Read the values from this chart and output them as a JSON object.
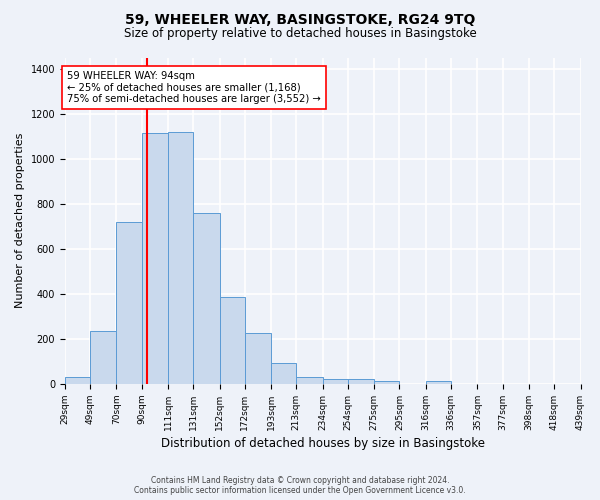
{
  "title": "59, WHEELER WAY, BASINGSTOKE, RG24 9TQ",
  "subtitle": "Size of property relative to detached houses in Basingstoke",
  "xlabel": "Distribution of detached houses by size in Basingstoke",
  "ylabel": "Number of detached properties",
  "bar_lefts": [
    29,
    49,
    70,
    90,
    111,
    131,
    152,
    172,
    193,
    213,
    234,
    254,
    275,
    295,
    316,
    336,
    357,
    377,
    398,
    418
  ],
  "bar_widths": [
    20,
    21,
    20,
    21,
    20,
    21,
    20,
    21,
    20,
    21,
    20,
    21,
    20,
    21,
    20,
    21,
    20,
    21,
    20,
    21
  ],
  "bar_heights": [
    30,
    237,
    718,
    1113,
    1120,
    760,
    385,
    228,
    93,
    30,
    22,
    22,
    15,
    0,
    12,
    0,
    0,
    0,
    0,
    0
  ],
  "bar_color": "#c9d9ed",
  "bar_edgecolor": "#5b9bd5",
  "vline_x": 94,
  "vline_color": "red",
  "annotation_text": "59 WHEELER WAY: 94sqm\n← 25% of detached houses are smaller (1,168)\n75% of semi-detached houses are larger (3,552) →",
  "annotation_box_edgecolor": "red",
  "annotation_box_facecolor": "white",
  "ylim": [
    0,
    1450
  ],
  "yticks": [
    0,
    200,
    400,
    600,
    800,
    1000,
    1200,
    1400
  ],
  "xlim": [
    29,
    439
  ],
  "tick_positions": [
    29,
    49,
    70,
    90,
    111,
    131,
    152,
    172,
    193,
    213,
    234,
    254,
    275,
    295,
    316,
    336,
    357,
    377,
    398,
    418,
    439
  ],
  "tick_labels": [
    "29sqm",
    "49sqm",
    "70sqm",
    "90sqm",
    "111sqm",
    "131sqm",
    "152sqm",
    "172sqm",
    "193sqm",
    "213sqm",
    "234sqm",
    "254sqm",
    "275sqm",
    "295sqm",
    "316sqm",
    "336sqm",
    "357sqm",
    "377sqm",
    "398sqm",
    "418sqm",
    "439sqm"
  ],
  "footer_line1": "Contains HM Land Registry data © Crown copyright and database right 2024.",
  "footer_line2": "Contains public sector information licensed under the Open Government Licence v3.0.",
  "background_color": "#eef2f9",
  "grid_color": "white",
  "title_fontsize": 10,
  "subtitle_fontsize": 8.5,
  "ylabel_fontsize": 8,
  "xlabel_fontsize": 8.5,
  "tick_fontsize": 6.5,
  "footer_fontsize": 5.5
}
